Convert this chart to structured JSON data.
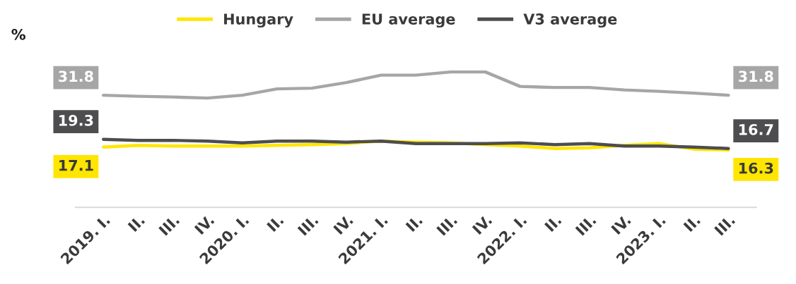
{
  "chart_data": {
    "type": "line",
    "ylabel": "%",
    "categories": [
      "2019. I.",
      "II.",
      "III.",
      "IV.",
      "2020. I.",
      "II.",
      "III.",
      "IV.",
      "2021. I.",
      "II.",
      "III.",
      "IV.",
      "2022. I.",
      "II.",
      "III.",
      "IV.",
      "2023. I.",
      "II.",
      "III."
    ],
    "series": [
      {
        "name": "Hungary",
        "color": "#ffe600",
        "values": [
          17.1,
          17.6,
          17.4,
          17.4,
          17.4,
          17.6,
          17.8,
          18.1,
          18.8,
          18.5,
          18.3,
          17.8,
          17.4,
          16.7,
          16.9,
          17.6,
          18.1,
          16.5,
          16.3
        ],
        "value_labels": [
          "17.1",
          null,
          null,
          null,
          null,
          null,
          null,
          null,
          null,
          null,
          null,
          null,
          null,
          null,
          null,
          null,
          null,
          null,
          "16.3"
        ]
      },
      {
        "name": "EU average",
        "color": "#a6a6a6",
        "values": [
          31.8,
          31.5,
          31.3,
          31.0,
          31.8,
          33.6,
          33.8,
          35.4,
          37.5,
          37.5,
          38.4,
          38.4,
          34.3,
          34.0,
          34.0,
          33.3,
          32.9,
          32.4,
          31.8
        ],
        "value_labels": [
          "31.8",
          null,
          null,
          null,
          null,
          null,
          null,
          null,
          null,
          null,
          null,
          null,
          null,
          null,
          null,
          null,
          null,
          null,
          "31.8"
        ]
      },
      {
        "name": "V3 average",
        "color": "#4d4d4f",
        "values": [
          19.3,
          19.0,
          19.0,
          18.8,
          18.3,
          18.8,
          18.8,
          18.5,
          18.8,
          18.1,
          18.1,
          18.1,
          18.3,
          17.8,
          18.1,
          17.4,
          17.4,
          17.1,
          16.7
        ],
        "value_labels": [
          "19.3",
          null,
          null,
          null,
          null,
          null,
          null,
          null,
          null,
          null,
          null,
          null,
          null,
          null,
          null,
          null,
          null,
          null,
          "16.7"
        ]
      }
    ],
    "tick_labels": "x",
    "grid": false,
    "legend": "top",
    "marker": "none",
    "line_style": "solid"
  }
}
